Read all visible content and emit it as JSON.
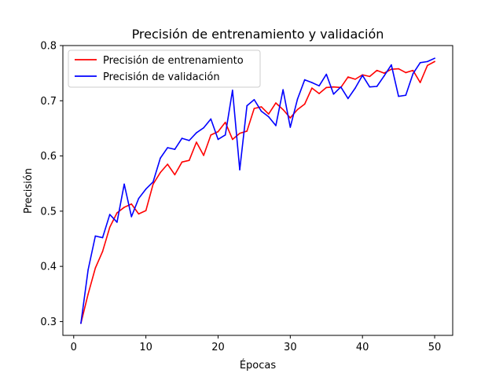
{
  "chart_data": {
    "type": "line",
    "title": "Precisión de entrenamiento y validación",
    "xlabel": "Épocas",
    "ylabel": "Precisión",
    "xlim": [
      -1.5,
      52.5
    ],
    "ylim": [
      0.275,
      0.8
    ],
    "xticks": [
      0,
      10,
      20,
      30,
      40,
      50
    ],
    "xtick_labels": [
      "0",
      "10",
      "20",
      "30",
      "40",
      "50"
    ],
    "yticks": [
      0.3,
      0.4,
      0.5,
      0.6,
      0.7,
      0.8
    ],
    "ytick_labels": [
      "0.3",
      "0.4",
      "0.5",
      "0.6",
      "0.7",
      "0.8"
    ],
    "grid": false,
    "legend_position": "top-left",
    "x": [
      1,
      2,
      3,
      4,
      5,
      6,
      7,
      8,
      9,
      10,
      11,
      12,
      13,
      14,
      15,
      16,
      17,
      18,
      19,
      20,
      21,
      22,
      23,
      24,
      25,
      26,
      27,
      28,
      29,
      30,
      31,
      32,
      33,
      34,
      35,
      36,
      37,
      38,
      39,
      40,
      41,
      42,
      43,
      44,
      45,
      46,
      47,
      48,
      49,
      50
    ],
    "series": [
      {
        "name": "Precisión de entrenamiento",
        "color": "#ff0000",
        "values": [
          0.297,
          0.35,
          0.397,
          0.427,
          0.471,
          0.497,
          0.507,
          0.513,
          0.495,
          0.501,
          0.549,
          0.57,
          0.585,
          0.566,
          0.589,
          0.592,
          0.625,
          0.601,
          0.638,
          0.644,
          0.661,
          0.63,
          0.641,
          0.645,
          0.686,
          0.689,
          0.676,
          0.696,
          0.684,
          0.669,
          0.684,
          0.694,
          0.723,
          0.713,
          0.724,
          0.725,
          0.724,
          0.743,
          0.739,
          0.747,
          0.744,
          0.755,
          0.75,
          0.757,
          0.758,
          0.751,
          0.755,
          0.733,
          0.764,
          0.771
        ]
      },
      {
        "name": "Precisión de validación",
        "color": "#0000ff",
        "values": [
          0.297,
          0.394,
          0.455,
          0.452,
          0.494,
          0.48,
          0.549,
          0.49,
          0.523,
          0.54,
          0.553,
          0.596,
          0.615,
          0.612,
          0.632,
          0.628,
          0.642,
          0.651,
          0.667,
          0.63,
          0.638,
          0.719,
          0.575,
          0.691,
          0.702,
          0.681,
          0.671,
          0.655,
          0.72,
          0.652,
          0.703,
          0.738,
          0.733,
          0.727,
          0.748,
          0.712,
          0.725,
          0.704,
          0.723,
          0.746,
          0.725,
          0.726,
          0.745,
          0.765,
          0.708,
          0.71,
          0.749,
          0.769,
          0.771,
          0.777
        ]
      }
    ]
  }
}
